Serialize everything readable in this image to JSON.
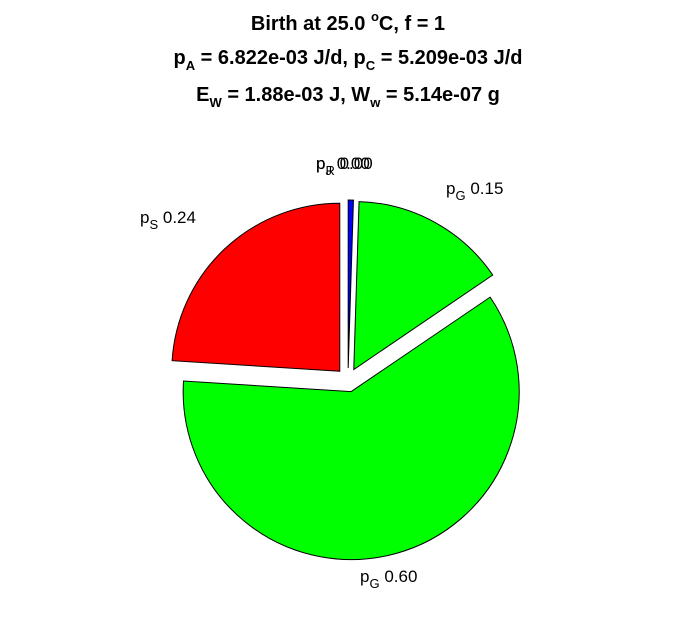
{
  "chart_data": {
    "type": "pie",
    "title_lines": [
      [
        {
          "t": "Birth at 25.0 "
        },
        {
          "t": "o",
          "s": "sup"
        },
        {
          "t": "C, f = 1"
        }
      ],
      [
        {
          "t": "p"
        },
        {
          "t": "A",
          "s": "sub"
        },
        {
          "t": " = 6.822e-03 J/d, p"
        },
        {
          "t": "C",
          "s": "sub"
        },
        {
          "t": " = 5.209e-03 J/d"
        }
      ],
      [
        {
          "t": "E"
        },
        {
          "t": "W",
          "s": "sub"
        },
        {
          "t": " = 1.88e-03 J, W"
        },
        {
          "t": "w",
          "s": "sub"
        },
        {
          "t": " = 5.14e-07 g"
        }
      ]
    ],
    "slices": [
      {
        "base": "p",
        "sub": "J",
        "value": "0.00",
        "fraction": 0.0,
        "color": "#ff0000"
      },
      {
        "base": "p",
        "sub": "R",
        "value": "0.00",
        "fraction": 0.005,
        "color": "#0000ff"
      },
      {
        "base": "p",
        "sub": "G",
        "value": "0.15",
        "fraction": 0.15,
        "color": "#00ff00"
      },
      {
        "base": "p",
        "sub": "G",
        "value": "0.60",
        "fraction": 0.605,
        "color": "#00ff00"
      },
      {
        "base": "p",
        "sub": "S",
        "value": "0.24",
        "fraction": 0.24,
        "color": "#ff0000"
      }
    ]
  }
}
